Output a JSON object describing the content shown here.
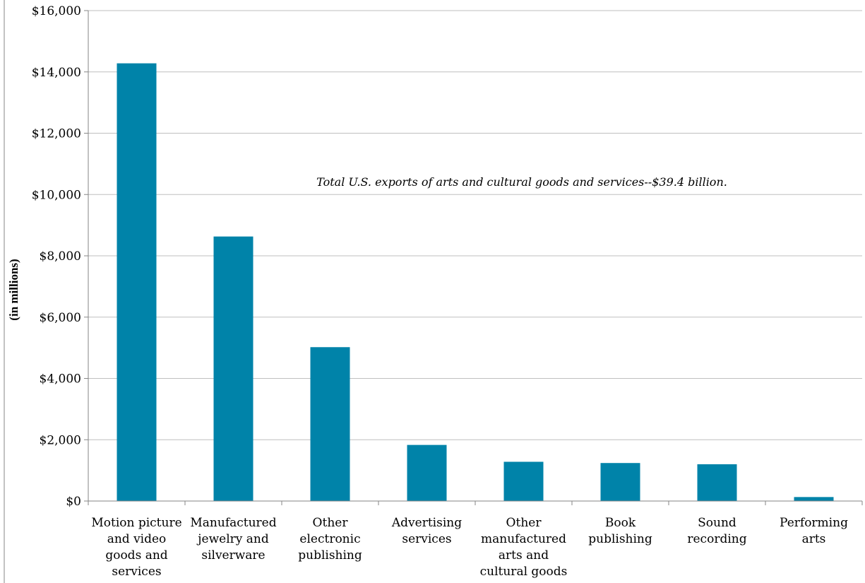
{
  "chart_data": {
    "type": "bar",
    "categories": [
      "Motion picture and video goods and services",
      "Manufactured jewelry and silverware",
      "Other electronic publishing",
      "Advertising services",
      "Other manufactured arts and cultural goods",
      "Book publishing",
      "Sound recording",
      "Performing arts"
    ],
    "category_lines": [
      [
        "Motion picture",
        "and video",
        "goods and",
        "services"
      ],
      [
        "Manufactured",
        "jewelry and",
        "silverware"
      ],
      [
        "Other",
        "electronic",
        "publishing"
      ],
      [
        "Advertising",
        "services"
      ],
      [
        "Other",
        "manufactured",
        "arts and",
        "cultural goods"
      ],
      [
        "Book",
        "publishing"
      ],
      [
        "Sound",
        "recording"
      ],
      [
        "Performing",
        "arts"
      ]
    ],
    "values": [
      14280,
      8630,
      5020,
      1830,
      1280,
      1240,
      1200,
      130
    ],
    "ylabel": "(in millions)",
    "xlabel": "",
    "ylim": [
      0,
      16000
    ],
    "yticks": [
      0,
      2000,
      4000,
      6000,
      8000,
      10000,
      12000,
      14000,
      16000
    ],
    "ytick_labels": [
      "$0",
      "$2,000",
      "$4,000",
      "$6,000",
      "$8,000",
      "$10,000",
      "$12,000",
      "$14,000",
      "$16,000"
    ],
    "annotation": "Total U.S. exports of arts and cultural goods and services--$39.4 billion.",
    "grid": true,
    "bar_color": "#0083A9"
  }
}
